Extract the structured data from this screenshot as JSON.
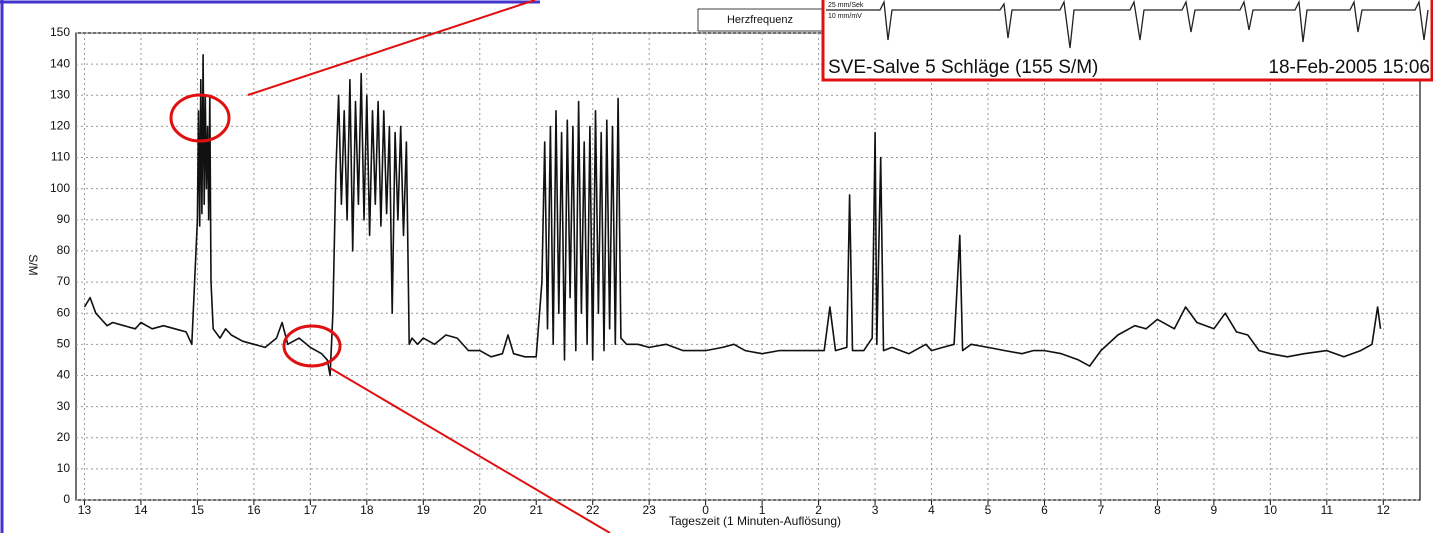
{
  "chart_data": {
    "type": "line",
    "title": "Herzfrequenz",
    "y_label": "S/M",
    "x_label": "Tageszeit (1 Minuten-Auflösung)",
    "xlim": [
      12.85,
      36.65
    ],
    "ylim": [
      0,
      150
    ],
    "xticks": [
      13,
      14,
      15,
      16,
      17,
      18,
      19,
      20,
      21,
      22,
      23,
      {
        "value": 24,
        "label": "0"
      },
      {
        "value": 25,
        "label": "1"
      },
      {
        "value": 26,
        "label": "2"
      },
      {
        "value": 27,
        "label": "3"
      },
      {
        "value": 28,
        "label": "4"
      },
      {
        "value": 29,
        "label": "5"
      },
      {
        "value": 30,
        "label": "6"
      },
      {
        "value": 31,
        "label": "7"
      },
      {
        "value": 32,
        "label": "8"
      },
      {
        "value": 33,
        "label": "9"
      },
      {
        "value": 34,
        "label": "10"
      },
      {
        "value": 35,
        "label": "11"
      },
      {
        "value": 36,
        "label": "12"
      }
    ],
    "yticks": [
      0,
      10,
      20,
      30,
      40,
      50,
      60,
      70,
      80,
      90,
      100,
      110,
      120,
      130,
      140,
      150
    ],
    "grid": true,
    "x": [
      13.0,
      13.1,
      13.2,
      13.3,
      13.4,
      13.5,
      13.7,
      13.9,
      14.0,
      14.2,
      14.4,
      14.6,
      14.8,
      14.9,
      14.95,
      15.0,
      15.02,
      15.04,
      15.06,
      15.08,
      15.1,
      15.12,
      15.14,
      15.16,
      15.18,
      15.2,
      15.22,
      15.24,
      15.28,
      15.4,
      15.5,
      15.6,
      15.8,
      16.0,
      16.2,
      16.4,
      16.5,
      16.6,
      16.8,
      17.0,
      17.1,
      17.2,
      17.3,
      17.35,
      17.4,
      17.45,
      17.5,
      17.55,
      17.6,
      17.65,
      17.7,
      17.75,
      17.8,
      17.85,
      17.9,
      17.95,
      18.0,
      18.05,
      18.1,
      18.15,
      18.2,
      18.25,
      18.3,
      18.35,
      18.4,
      18.45,
      18.5,
      18.55,
      18.6,
      18.65,
      18.7,
      18.75,
      18.8,
      18.9,
      19.0,
      19.2,
      19.4,
      19.6,
      19.8,
      20.0,
      20.2,
      20.4,
      20.5,
      20.6,
      20.8,
      21.0,
      21.1,
      21.15,
      21.2,
      21.25,
      21.3,
      21.35,
      21.4,
      21.45,
      21.5,
      21.55,
      21.6,
      21.65,
      21.7,
      21.75,
      21.8,
      21.85,
      21.9,
      21.95,
      22.0,
      22.05,
      22.1,
      22.15,
      22.2,
      22.25,
      22.3,
      22.35,
      22.4,
      22.45,
      22.5,
      22.6,
      22.8,
      23.0,
      23.3,
      23.6,
      24.0,
      24.3,
      24.5,
      24.7,
      25.0,
      25.3,
      25.6,
      25.9,
      26.1,
      26.2,
      26.3,
      26.5,
      26.55,
      26.6,
      26.8,
      26.95,
      27.0,
      27.03,
      27.1,
      27.15,
      27.3,
      27.6,
      27.9,
      28.0,
      28.2,
      28.4,
      28.5,
      28.55,
      28.7,
      29.0,
      29.3,
      29.6,
      29.8,
      30.0,
      30.3,
      30.6,
      30.8,
      31.0,
      31.3,
      31.6,
      31.8,
      32.0,
      32.3,
      32.5,
      32.7,
      33.0,
      33.2,
      33.4,
      33.6,
      33.8,
      34.0,
      34.3,
      34.6,
      35.0,
      35.3,
      35.6,
      35.8,
      35.9,
      35.95
    ],
    "series": [
      {
        "color": "#111111",
        "values": [
          62,
          65,
          60,
          58,
          56,
          57,
          56,
          55,
          57,
          55,
          56,
          55,
          54,
          50,
          70,
          90,
          125,
          88,
          135,
          92,
          143,
          95,
          130,
          100,
          120,
          90,
          130,
          70,
          55,
          52,
          55,
          53,
          51,
          50,
          49,
          52,
          57,
          50,
          52,
          49,
          48,
          47,
          45,
          40,
          60,
          105,
          130,
          95,
          125,
          90,
          135,
          80,
          128,
          95,
          137,
          90,
          130,
          85,
          125,
          95,
          128,
          88,
          125,
          92,
          120,
          60,
          118,
          90,
          120,
          85,
          115,
          50,
          52,
          50,
          52,
          50,
          53,
          52,
          48,
          48,
          46,
          47,
          53,
          47,
          46,
          46,
          70,
          115,
          55,
          120,
          50,
          125,
          60,
          118,
          45,
          122,
          65,
          120,
          48,
          128,
          60,
          115,
          50,
          120,
          45,
          125,
          60,
          118,
          48,
          122,
          55,
          120,
          50,
          129,
          52,
          50,
          50,
          49,
          50,
          48,
          48,
          49,
          50,
          48,
          47,
          48,
          48,
          48,
          48,
          62,
          48,
          49,
          98,
          48,
          48,
          52,
          118,
          50,
          110,
          48,
          49,
          47,
          50,
          48,
          49,
          50,
          85,
          48,
          50,
          49,
          48,
          47,
          48,
          48,
          47,
          45,
          43,
          48,
          53,
          56,
          55,
          58,
          55,
          62,
          57,
          55,
          60,
          54,
          53,
          48,
          47,
          46,
          47,
          48,
          46,
          48,
          50,
          62,
          55
        ]
      }
    ]
  },
  "inset": {
    "title": "SVE-Salve 5 Schläge (155 S/M)",
    "timestamp": "18-Feb-2005 15:06",
    "notes": [
      "25 mm/Sek",
      "10 mm/mV"
    ]
  }
}
